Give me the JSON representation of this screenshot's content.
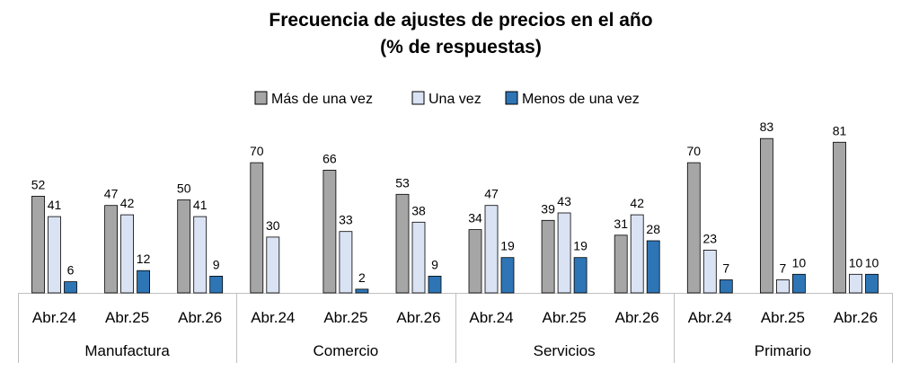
{
  "chart_data": {
    "type": "bar",
    "title": "Frecuencia de ajustes de precios en el año",
    "subtitle": "(% de respuestas)",
    "legend_position": "top",
    "ylim": [
      0,
      100
    ],
    "grid": false,
    "groups": [
      {
        "name": "Manufactura",
        "categories": [
          "Abr.24",
          "Abr.25",
          "Abr.26"
        ]
      },
      {
        "name": "Comercio",
        "categories": [
          "Abr.24",
          "Abr.25",
          "Abr.26"
        ]
      },
      {
        "name": "Servicios",
        "categories": [
          "Abr.24",
          "Abr.25",
          "Abr.26"
        ]
      },
      {
        "name": "Primario",
        "categories": [
          "Abr.24",
          "Abr.25",
          "Abr.26"
        ]
      }
    ],
    "series": [
      {
        "name": "Más de una vez",
        "color": "#a6a6a6",
        "values": [
          52,
          47,
          50,
          70,
          66,
          53,
          34,
          39,
          31,
          70,
          83,
          81
        ]
      },
      {
        "name": "Una vez",
        "color": "#dae3f3",
        "values": [
          41,
          42,
          41,
          30,
          33,
          38,
          47,
          43,
          42,
          23,
          7,
          10
        ]
      },
      {
        "name": "Menos de una vez",
        "color": "#2e75b6",
        "values": [
          6,
          12,
          9,
          null,
          2,
          9,
          19,
          19,
          28,
          7,
          10,
          10
        ]
      }
    ]
  }
}
